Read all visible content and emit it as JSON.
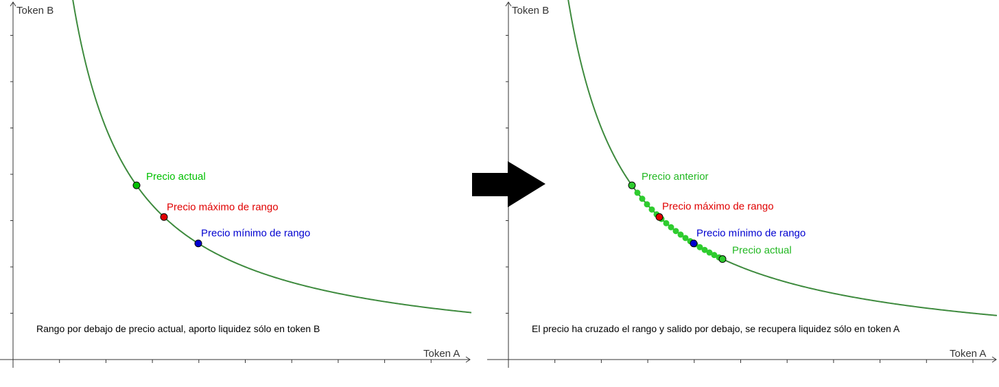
{
  "panels": [
    {
      "y_axis_label": "Token B",
      "x_axis_label": "Token A",
      "points": [
        {
          "label": "Precio actual"
        },
        {
          "label": "Precio máximo de rango"
        },
        {
          "label": "Precio mínimo de rango"
        }
      ],
      "caption": "Rango por debajo de precio actual, aporto liquidez sólo en token B"
    },
    {
      "y_axis_label": "Token B",
      "x_axis_label": "Token A",
      "points": [
        {
          "label": "Precio anterior"
        },
        {
          "label": "Precio máximo de rango"
        },
        {
          "label": "Precio mínimo de rango"
        },
        {
          "label": "Precio actual"
        }
      ],
      "caption": "El precio ha cruzado el rango y salido por debajo, se recupera liquidez sólo en token A"
    }
  ]
}
